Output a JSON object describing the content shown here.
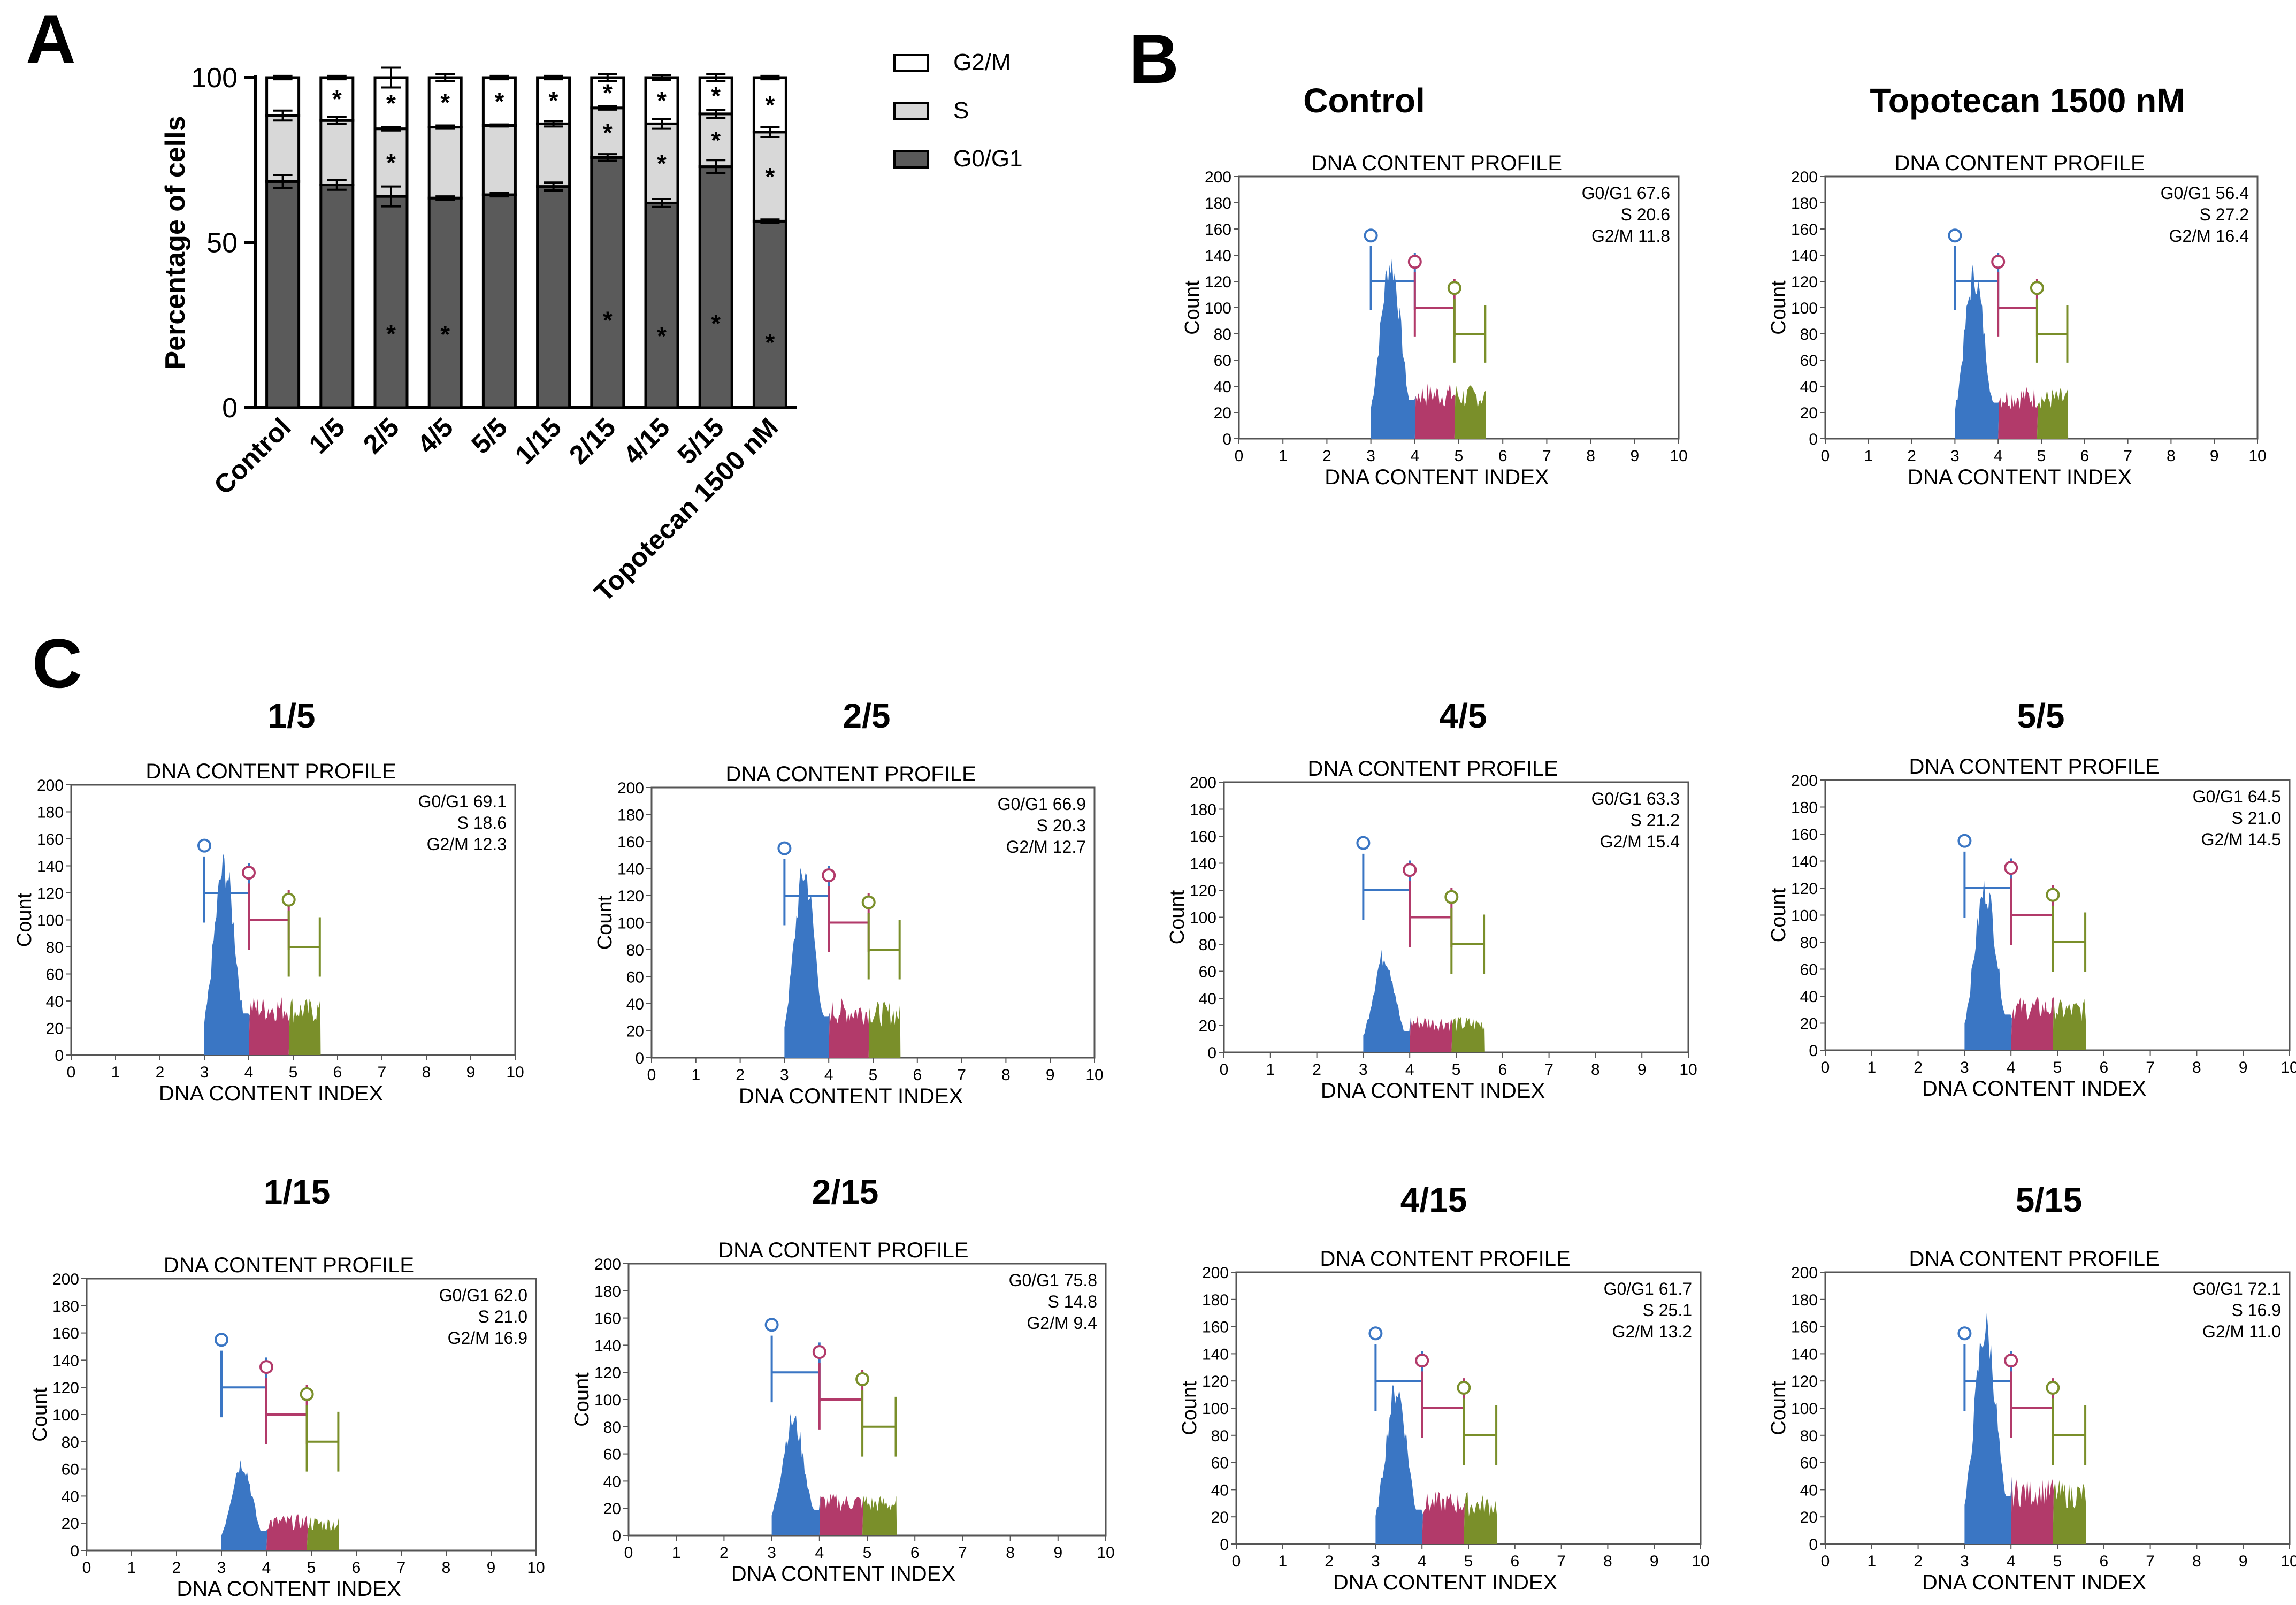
{
  "colors": {
    "g0g1_bar": "#5a5a5a",
    "s_bar": "#d8d8d8",
    "g2m_bar": "#ffffff",
    "hist_g0g1": "#3a76c4",
    "hist_s": "#b23a6a",
    "hist_g2m": "#7a8f2a"
  },
  "panel_labels": {
    "a": "A",
    "b": "B",
    "c": "C"
  },
  "chart_data": [
    {
      "type": "bar",
      "stacked": true,
      "ylabel": "Percentage of cells",
      "ylim": [
        0,
        100
      ],
      "yticks": [
        0,
        50,
        100
      ],
      "categories": [
        "Control",
        "1/5",
        "2/5",
        "4/5",
        "5/5",
        "1/15",
        "2/15",
        "4/15",
        "5/15",
        "Topotecan 1500 nM"
      ],
      "series": [
        {
          "name": "G0/G1",
          "color": "#5a5a5a",
          "values": [
            68.5,
            67.5,
            64.0,
            63.5,
            64.5,
            67.0,
            75.8,
            62.0,
            73.0,
            56.5
          ],
          "errors": [
            2.0,
            1.5,
            3.0,
            0.5,
            0.5,
            1.2,
            1.0,
            1.2,
            2.0,
            0.5
          ],
          "significant": [
            false,
            false,
            true,
            true,
            false,
            false,
            true,
            true,
            true,
            true
          ]
        },
        {
          "name": "S",
          "color": "#d8d8d8",
          "values": [
            20.0,
            19.5,
            20.5,
            21.5,
            21.0,
            19.0,
            15.0,
            24.0,
            16.0,
            27.0
          ],
          "errors": [
            1.5,
            1.0,
            0.5,
            0.5,
            0.3,
            0.8,
            0.5,
            1.5,
            1.2,
            1.5
          ],
          "significant": [
            false,
            false,
            true,
            false,
            false,
            false,
            true,
            true,
            true,
            true
          ]
        },
        {
          "name": "G2/M",
          "color": "#ffffff",
          "values": [
            11.5,
            13.0,
            15.5,
            15.0,
            14.5,
            14.0,
            9.2,
            14.0,
            11.0,
            16.5
          ],
          "errors": [
            0.5,
            0.5,
            3.0,
            1.0,
            0.5,
            0.5,
            1.0,
            0.8,
            1.0,
            0.5
          ],
          "significant": [
            false,
            true,
            true,
            true,
            true,
            true,
            true,
            true,
            true,
            true
          ]
        }
      ],
      "legend": [
        "G2/M",
        "S",
        "G0/G1"
      ],
      "legend_position": "right"
    },
    {
      "type": "histogram",
      "panel": "B",
      "heading": "Control",
      "title": "DNA CONTENT PROFILE",
      "xlabel": "DNA CONTENT INDEX",
      "ylabel": "Count",
      "stats": [
        {
          "label": "G0/G1",
          "value": "67.6"
        },
        {
          "label": "S",
          "value": "20.6"
        },
        {
          "label": "G2/M",
          "value": "11.8"
        }
      ],
      "peak": 135
    },
    {
      "type": "histogram",
      "panel": "B",
      "heading": "Topotecan 1500 nM",
      "title": "DNA CONTENT PROFILE",
      "xlabel": "DNA CONTENT INDEX",
      "ylabel": "Count",
      "stats": [
        {
          "label": "G0/G1",
          "value": "56.4"
        },
        {
          "label": "S",
          "value": "27.2"
        },
        {
          "label": "G2/M",
          "value": "16.4"
        }
      ],
      "peak": 125
    },
    {
      "type": "histogram",
      "panel": "C",
      "heading": "1/5",
      "title": "DNA CONTENT PROFILE",
      "xlabel": "DNA CONTENT INDEX",
      "ylabel": "Count",
      "stats": [
        {
          "label": "G0/G1",
          "value": "69.1"
        },
        {
          "label": "S",
          "value": "18.6"
        },
        {
          "label": "G2/M",
          "value": "12.3"
        }
      ],
      "peak": 140
    },
    {
      "type": "histogram",
      "panel": "C",
      "heading": "2/5",
      "title": "DNA CONTENT PROFILE",
      "xlabel": "DNA CONTENT INDEX",
      "ylabel": "Count",
      "stats": [
        {
          "label": "G0/G1",
          "value": "66.9"
        },
        {
          "label": "S",
          "value": "20.3"
        },
        {
          "label": "G2/M",
          "value": "12.7"
        }
      ],
      "peak": 138
    },
    {
      "type": "histogram",
      "panel": "C",
      "heading": "4/5",
      "title": "DNA CONTENT PROFILE",
      "xlabel": "DNA CONTENT INDEX",
      "ylabel": "Count",
      "stats": [
        {
          "label": "G0/G1",
          "value": "63.3"
        },
        {
          "label": "S",
          "value": "21.2"
        },
        {
          "label": "G2/M",
          "value": "15.4"
        }
      ],
      "peak": 72
    },
    {
      "type": "histogram",
      "panel": "C",
      "heading": "5/5",
      "title": "DNA CONTENT PROFILE",
      "xlabel": "DNA CONTENT INDEX",
      "ylabel": "Count",
      "stats": [
        {
          "label": "G0/G1",
          "value": "64.5"
        },
        {
          "label": "S",
          "value": "21.0"
        },
        {
          "label": "G2/M",
          "value": "14.5"
        }
      ],
      "peak": 120
    },
    {
      "type": "histogram",
      "panel": "C",
      "heading": "1/15",
      "title": "DNA CONTENT PROFILE",
      "xlabel": "DNA CONTENT INDEX",
      "ylabel": "Count",
      "stats": [
        {
          "label": "G0/G1",
          "value": "62.0"
        },
        {
          "label": "S",
          "value": "21.0"
        },
        {
          "label": "G2/M",
          "value": "16.9"
        }
      ],
      "peak": 65
    },
    {
      "type": "histogram",
      "panel": "C",
      "heading": "2/15",
      "title": "DNA CONTENT PROFILE",
      "xlabel": "DNA CONTENT INDEX",
      "ylabel": "Count",
      "stats": [
        {
          "label": "G0/G1",
          "value": "75.8"
        },
        {
          "label": "S",
          "value": "14.8"
        },
        {
          "label": "G2/M",
          "value": "9.4"
        }
      ],
      "peak": 85
    },
    {
      "type": "histogram",
      "panel": "C",
      "heading": "4/15",
      "title": "DNA CONTENT PROFILE",
      "xlabel": "DNA CONTENT INDEX",
      "ylabel": "Count",
      "stats": [
        {
          "label": "G0/G1",
          "value": "61.7"
        },
        {
          "label": "S",
          "value": "25.1"
        },
        {
          "label": "G2/M",
          "value": "13.2"
        }
      ],
      "peak": 115
    },
    {
      "type": "histogram",
      "panel": "C",
      "heading": "5/15",
      "title": "DNA CONTENT PROFILE",
      "xlabel": "DNA CONTENT INDEX",
      "ylabel": "Count",
      "stats": [
        {
          "label": "G0/G1",
          "value": "72.1"
        },
        {
          "label": "S",
          "value": "16.9"
        },
        {
          "label": "G2/M",
          "value": "11.0"
        }
      ],
      "peak": 160
    }
  ],
  "histogram_axes": {
    "xticks": [
      0,
      1,
      2,
      3,
      4,
      5,
      6,
      7,
      8,
      9,
      10
    ],
    "yticks": [
      0,
      20,
      40,
      60,
      80,
      100,
      120,
      140,
      160,
      180,
      200
    ],
    "xlim": [
      0,
      10
    ],
    "ylim": [
      0,
      200
    ]
  }
}
